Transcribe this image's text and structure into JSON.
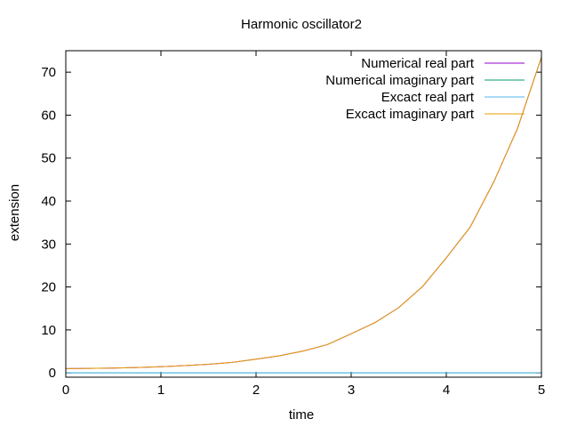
{
  "chart_data": {
    "type": "line",
    "title": "Harmonic oscillator2",
    "xlabel": "time",
    "ylabel": "extension",
    "xlim": [
      0,
      5
    ],
    "ylim": [
      -1,
      75
    ],
    "xticks": [
      "0",
      "1",
      "2",
      "3",
      "4",
      "5"
    ],
    "yticks": [
      "0",
      "10",
      "20",
      "30",
      "40",
      "50",
      "60",
      "70"
    ],
    "grid": false,
    "legend_position": "top-right",
    "x": [
      0,
      0.25,
      0.5,
      0.75,
      1,
      1.25,
      1.5,
      1.75,
      2,
      2.25,
      2.5,
      2.75,
      3,
      3.25,
      3.5,
      3.75,
      4,
      4.25,
      4.5,
      4.75,
      5
    ],
    "series": [
      {
        "name": "Numerical real part",
        "color": "#9400d3",
        "values": [
          1.0,
          1.05,
          1.12,
          1.25,
          1.42,
          1.68,
          2.0,
          2.45,
          3.2,
          4.0,
          5.1,
          6.6,
          9.1,
          11.7,
          15.2,
          20.1,
          26.8,
          33.9,
          44.5,
          57.0,
          73.5
        ]
      },
      {
        "name": "Numerical imaginary part",
        "color": "#009e73",
        "values": [
          0,
          0,
          0,
          0,
          0,
          0,
          0,
          0,
          0,
          0,
          0,
          0,
          0,
          0,
          0,
          0,
          0,
          0,
          0,
          0,
          0
        ]
      },
      {
        "name": "Excact real part",
        "color": "#56b4e9",
        "values": [
          0,
          0,
          0,
          0,
          0,
          0,
          0,
          0,
          0,
          0,
          0,
          0,
          0,
          0,
          0,
          0,
          0,
          0,
          0,
          0,
          0
        ]
      },
      {
        "name": "Excact imaginary part",
        "color": "#e69f00",
        "values": [
          1.0,
          1.05,
          1.12,
          1.25,
          1.42,
          1.68,
          2.0,
          2.45,
          3.2,
          4.0,
          5.1,
          6.6,
          9.1,
          11.7,
          15.2,
          20.1,
          26.8,
          33.9,
          44.5,
          57.0,
          73.5
        ]
      }
    ]
  }
}
